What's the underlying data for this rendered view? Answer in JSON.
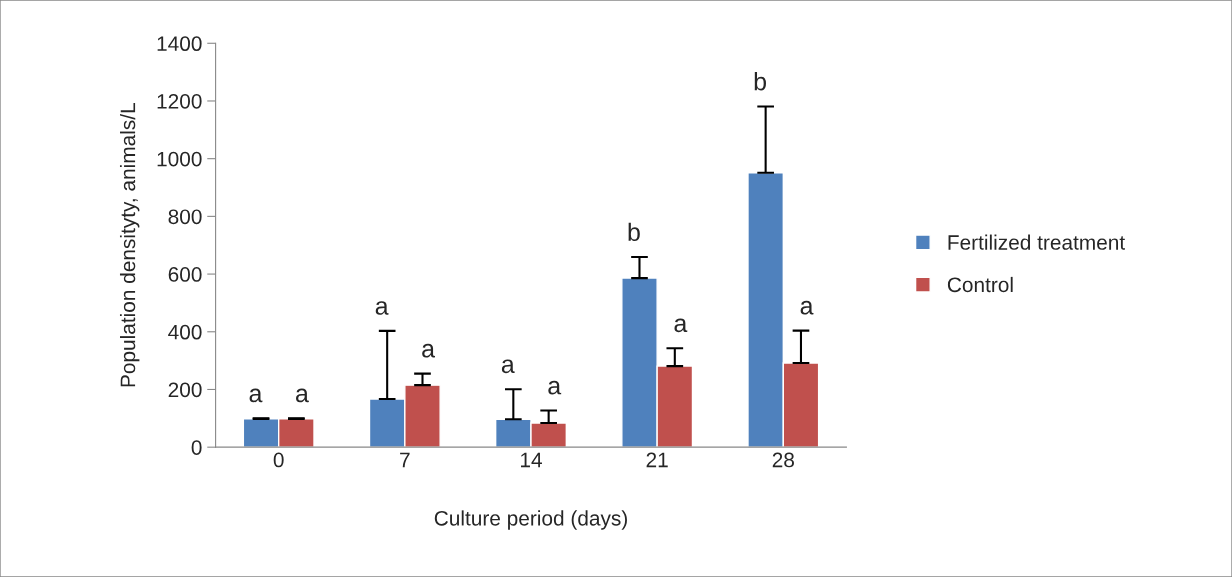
{
  "chart_data": {
    "type": "bar",
    "xlabel": "Culture period (days)",
    "ylabel": "Population densityty, animals/L",
    "categories": [
      "0",
      "7",
      "14",
      "21",
      "28"
    ],
    "series": [
      {
        "name": "Fertilized treatment",
        "color": "#4f81bd",
        "values": [
          98,
          167,
          97,
          586,
          951
        ],
        "errors": [
          [
            98,
            100
          ],
          [
            167,
            403
          ],
          [
            97,
            201
          ],
          [
            586,
            659
          ],
          [
            951,
            1181
          ]
        ]
      },
      {
        "name": "Control",
        "color": "#c0504d",
        "values": [
          98,
          215,
          84,
          281,
          292
        ],
        "errors": [
          [
            98,
            100
          ],
          [
            215,
            255
          ],
          [
            84,
            127
          ],
          [
            281,
            343
          ],
          [
            292,
            404
          ]
        ]
      }
    ],
    "ylim": [
      0,
      1400
    ],
    "yticks": [
      0,
      200,
      400,
      600,
      800,
      1000,
      1200,
      1400
    ],
    "grid": false,
    "legend": "right",
    "annotations": [
      "a",
      "a",
      "a",
      "a",
      "a",
      "a",
      "b",
      "a",
      "b",
      "a"
    ]
  }
}
